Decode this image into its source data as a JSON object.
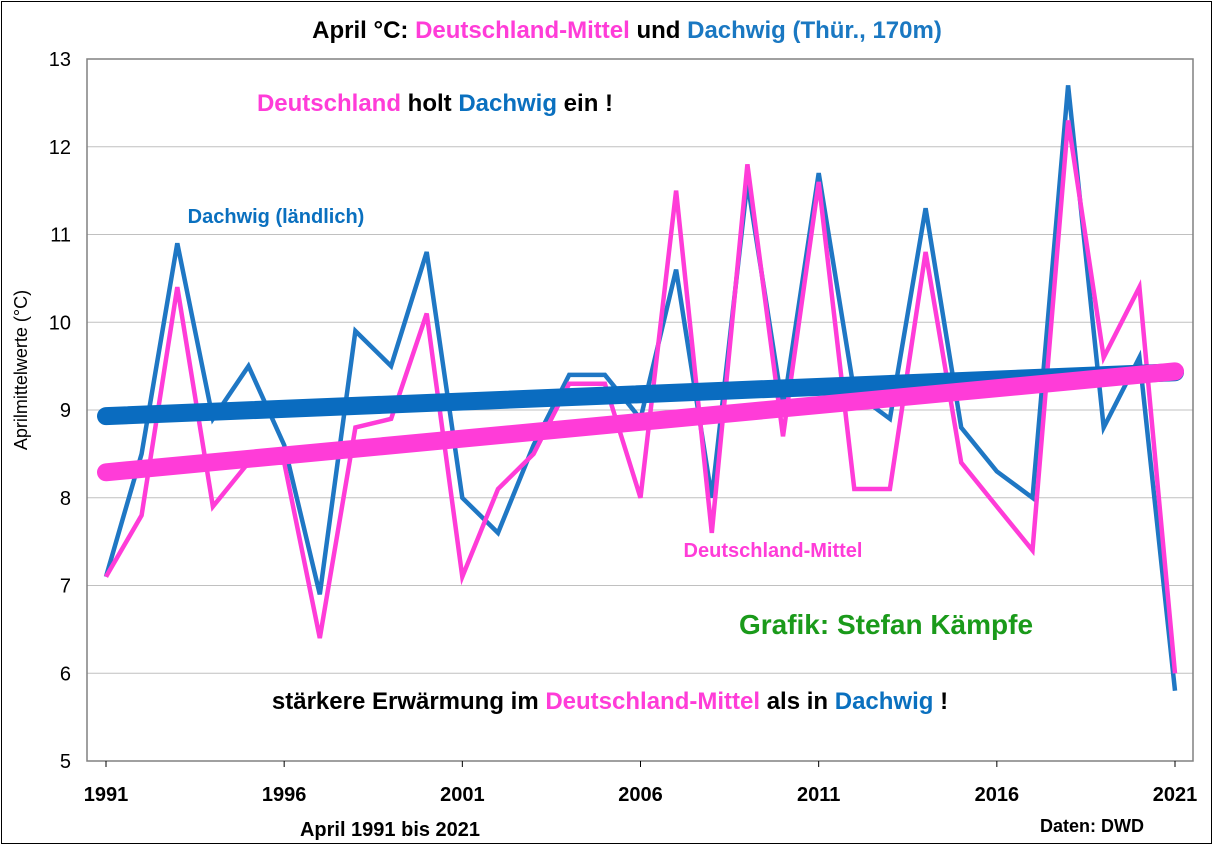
{
  "title_parts": [
    {
      "text": "April °C: ",
      "color": "#000000"
    },
    {
      "text": "Deutschland-Mittel",
      "color": "#ff3cd8"
    },
    {
      "text": " und ",
      "color": "#000000"
    },
    {
      "text": "Dachwig (Thür., 170m)",
      "color": "#1a78c2"
    }
  ],
  "headline_parts": [
    {
      "text": "Deutschland",
      "color": "#ff3cd8"
    },
    {
      "text": " holt ",
      "color": "#000000"
    },
    {
      "text": "Dachwig",
      "color": "#0a70bf"
    },
    {
      "text": " ein !",
      "color": "#000000"
    }
  ],
  "bottom_note_parts": [
    {
      "text": "stärkere Erwärmung im ",
      "color": "#000000"
    },
    {
      "text": "Deutschland-Mittel",
      "color": "#ff3cd8"
    },
    {
      "text": " als in ",
      "color": "#000000"
    },
    {
      "text": "Dachwig",
      "color": "#0a70bf"
    },
    {
      "text": " !",
      "color": "#000000"
    }
  ],
  "credit": {
    "text": "Grafik: Stefan Kämpfe",
    "color": "#1a9a1a"
  },
  "source": "Daten: DWD",
  "colors": {
    "dachwig": "#1f77c4",
    "dachwig_trend": "#0a6cc0",
    "mittel": "#ff3cd8",
    "grid": "#c0c0c0"
  },
  "chart_data": {
    "type": "line",
    "xlabel": "April 1991 bis 2021",
    "ylabel": "Aprilmittelwerte (°C)",
    "ylim": [
      5,
      13
    ],
    "yticks": [
      5,
      6,
      7,
      8,
      9,
      10,
      11,
      12,
      13
    ],
    "xlim": [
      1991,
      2021
    ],
    "xticks": [
      1991,
      1996,
      2001,
      2006,
      2011,
      2016,
      2021
    ],
    "grid": true,
    "x": [
      1991,
      1992,
      1993,
      1994,
      1995,
      1996,
      1997,
      1998,
      1999,
      2000,
      2001,
      2002,
      2003,
      2004,
      2005,
      2006,
      2007,
      2008,
      2009,
      2010,
      2011,
      2012,
      2013,
      2014,
      2015,
      2016,
      2017,
      2018,
      2019,
      2020,
      2021
    ],
    "series": [
      {
        "name": "Dachwig (ländlich)",
        "color": "#1f77c4",
        "values": [
          7.1,
          8.5,
          10.9,
          8.9,
          9.5,
          8.6,
          6.9,
          9.9,
          9.5,
          10.8,
          8.0,
          7.6,
          8.6,
          9.4,
          9.4,
          8.9,
          10.6,
          8.0,
          11.6,
          9.0,
          11.7,
          9.2,
          8.9,
          11.3,
          8.8,
          8.3,
          8.0,
          12.7,
          8.8,
          9.6,
          5.8
        ]
      },
      {
        "name": "Deutschland-Mittel",
        "color": "#ff3cd8",
        "values": [
          7.1,
          7.8,
          10.4,
          7.9,
          8.4,
          8.4,
          6.4,
          8.8,
          8.9,
          10.1,
          7.1,
          8.1,
          8.5,
          9.3,
          9.3,
          8.0,
          11.5,
          7.6,
          11.8,
          8.7,
          11.6,
          8.1,
          8.1,
          10.8,
          8.4,
          7.9,
          7.4,
          12.3,
          9.6,
          10.4,
          6.0
        ]
      }
    ],
    "trends": [
      {
        "series": "Dachwig (ländlich)",
        "color": "#0a6cc0",
        "start": [
          1991,
          8.93
        ],
        "end": [
          2021,
          9.43
        ]
      },
      {
        "series": "Deutschland-Mittel",
        "color": "#ff3cd8",
        "start": [
          1991,
          8.29
        ],
        "end": [
          2021,
          9.44
        ]
      }
    ]
  }
}
